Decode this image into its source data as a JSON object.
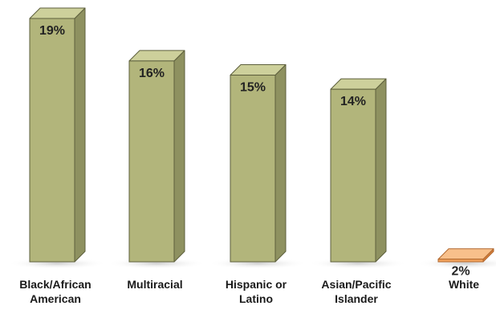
{
  "chart_data": {
    "type": "bar",
    "categories": [
      "Black/African\nAmerican",
      "Multiracial",
      "Hispanic or\nLatino",
      "Asian/Pacific\nIslander",
      "White"
    ],
    "values": [
      19,
      16,
      15,
      14,
      2
    ],
    "value_labels": [
      "19%",
      "16%",
      "15%",
      "14%",
      "2%"
    ],
    "ylim": [
      0,
      20
    ],
    "grid": false,
    "legend": "none",
    "colors": {
      "default_front": "#b2b57b",
      "default_side": "#8e9160",
      "default_top": "#cdd09b",
      "highlight_front": "#f4a45e",
      "highlight_side": "#d9823e",
      "highlight_top": "#f8c08b",
      "outline": "#5d5f3c",
      "highlight_outline": "#b0672e"
    },
    "highlight_index": 4
  }
}
